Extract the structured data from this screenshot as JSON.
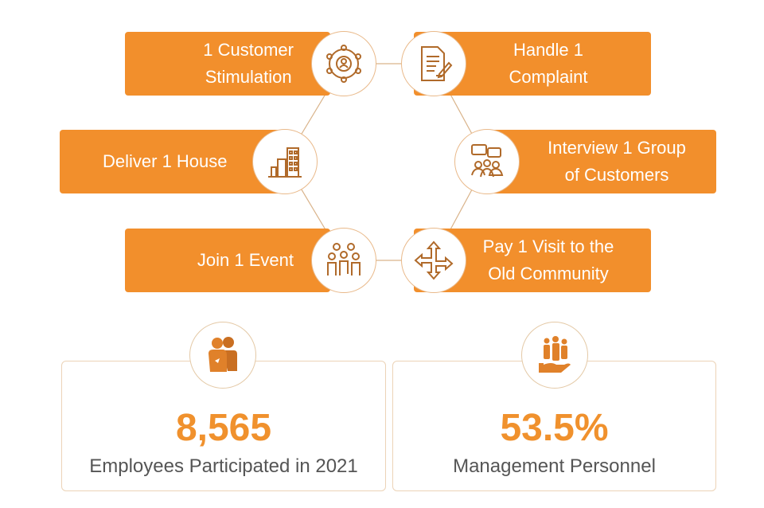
{
  "activities": [
    {
      "label_line1": "1 Customer",
      "label_line2": "Stimulation",
      "icon": "network-person-icon"
    },
    {
      "label_line1": "Handle 1",
      "label_line2": "Complaint",
      "icon": "document-pen-icon"
    },
    {
      "label_line1": "Deliver 1 House",
      "label_line2": "",
      "icon": "buildings-icon"
    },
    {
      "label_line1": "Interview 1 Group",
      "label_line2": "of Customers",
      "icon": "group-chat-icon"
    },
    {
      "label_line1": "Join 1 Event",
      "label_line2": "",
      "icon": "people-group-icon"
    },
    {
      "label_line1": "Pay 1 Visit to the",
      "label_line2": "Old Community",
      "icon": "four-arrows-icon"
    }
  ],
  "stats": [
    {
      "value": "8,565",
      "label": "Employees Participated in 2021",
      "icon": "two-people-icon"
    },
    {
      "value": "53.5%",
      "label": "Management Personnel",
      "icon": "people-in-hand-icon"
    }
  ],
  "colors": {
    "accent": "#f28f2c",
    "icon_stroke": "#b06a2a",
    "text": "#555555"
  }
}
